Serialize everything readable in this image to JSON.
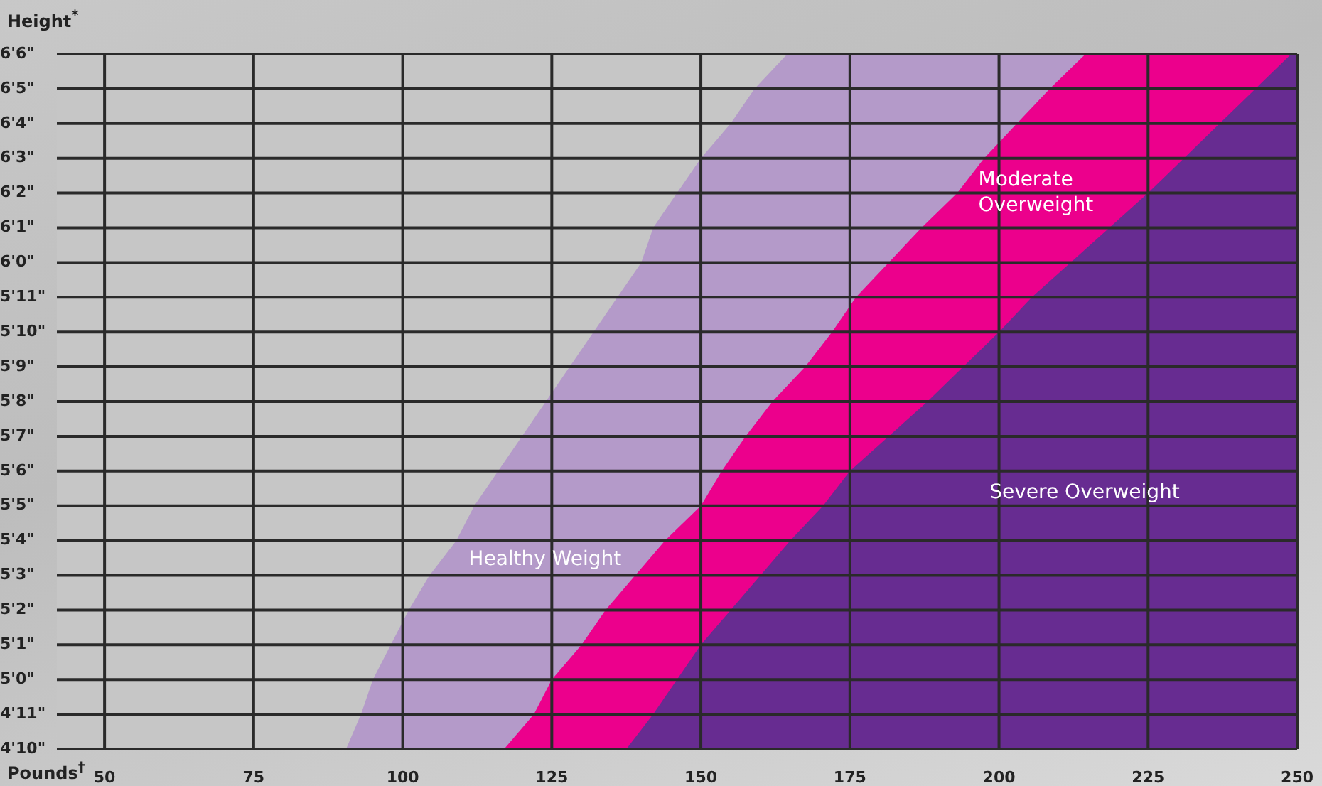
{
  "chart_data": {
    "type": "area",
    "orientation": "horizontal",
    "ylabel": "Height$^{*}$",
    "xlabel": "Pounds$^{†}$",
    "categories": [
      "6'6\"",
      "6'5\"",
      "6'4\"",
      "6'3\"",
      "6'2\"",
      "6'1\"",
      "6'0\"",
      "5'11\"",
      "5'10\"",
      "5'9\"",
      "5'8\"",
      "5'7\"",
      "5'6\"",
      "5'5\"",
      "5'4\"",
      "5'3\"",
      "5'2\"",
      "5'1\"",
      "5'0\"",
      "4'11\"",
      "4'10\""
    ],
    "xlim": [
      42,
      250
    ],
    "xticks": [
      50,
      75,
      100,
      125,
      150,
      175,
      200,
      225,
      250
    ],
    "grid": true,
    "legend": false,
    "series": [
      {
        "color": "#672c91",
        "values": [
          250,
          250,
          250,
          250,
          250,
          250,
          250,
          250,
          250,
          250,
          250,
          250,
          250,
          250,
          250,
          250,
          250,
          250,
          250,
          250,
          250
        ]
      },
      {
        "color": "#ec008c",
        "values": [
          249,
          243,
          237,
          231,
          225,
          218.5,
          212,
          205.5,
          200,
          194,
          188,
          181.5,
          175,
          170.5,
          165,
          160,
          155,
          150,
          146,
          142,
          137.5
        ]
      },
      {
        "color": "#b49ac9",
        "values": [
          214.5,
          208.5,
          203,
          197.5,
          193,
          187,
          181.5,
          176,
          172,
          167.5,
          162,
          157.5,
          153.5,
          150,
          144,
          139,
          134,
          130,
          125,
          122,
          117
        ]
      },
      {
        "color": "#c6c6c6",
        "values": [
          164.5,
          159,
          155,
          150,
          146,
          142,
          140,
          136,
          132,
          128,
          124,
          120,
          116,
          112,
          109,
          104.5,
          101,
          98,
          95,
          93,
          90.5
        ]
      }
    ],
    "annotations": [
      "Healthy Weight",
      "Moderate\nOverweight",
      "Severe Overweight"
    ]
  }
}
